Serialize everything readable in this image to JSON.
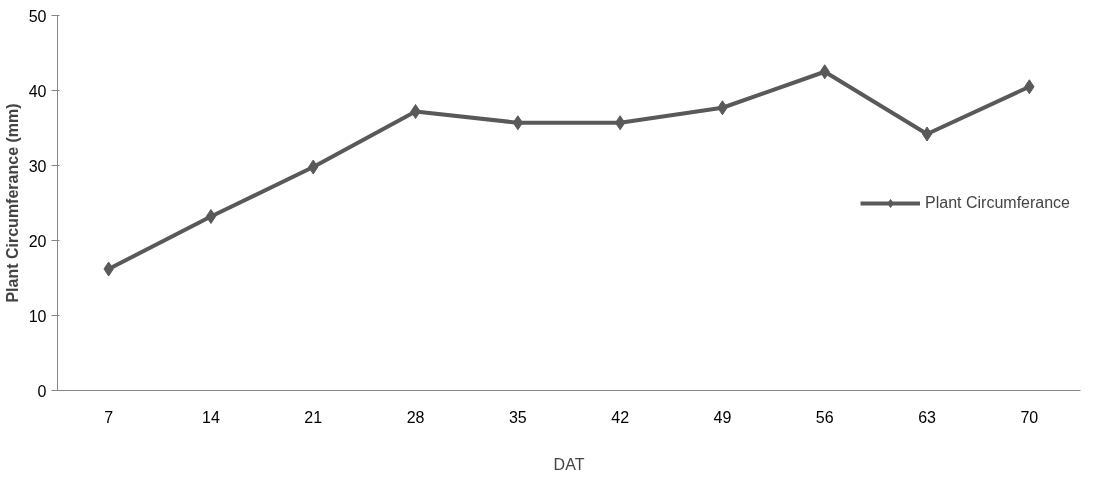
{
  "chart_data": {
    "type": "line",
    "xlabel": "DAT",
    "ylabel": "Plant Circumferance (mm)",
    "categories": [
      "7",
      "14",
      "21",
      "28",
      "35",
      "42",
      "49",
      "56",
      "63",
      "70"
    ],
    "series": [
      {
        "name": "Plant Circumferance",
        "color": "#595959",
        "values": [
          16.2,
          23.2,
          29.8,
          37.2,
          35.7,
          35.7,
          37.7,
          42.5,
          34.2,
          40.5
        ]
      }
    ],
    "ylim": [
      0,
      50
    ],
    "yticks": [
      0,
      10,
      20,
      30,
      40,
      50
    ],
    "grid": false,
    "legend": "center right",
    "marker": "diamond",
    "line_style": "solid"
  }
}
